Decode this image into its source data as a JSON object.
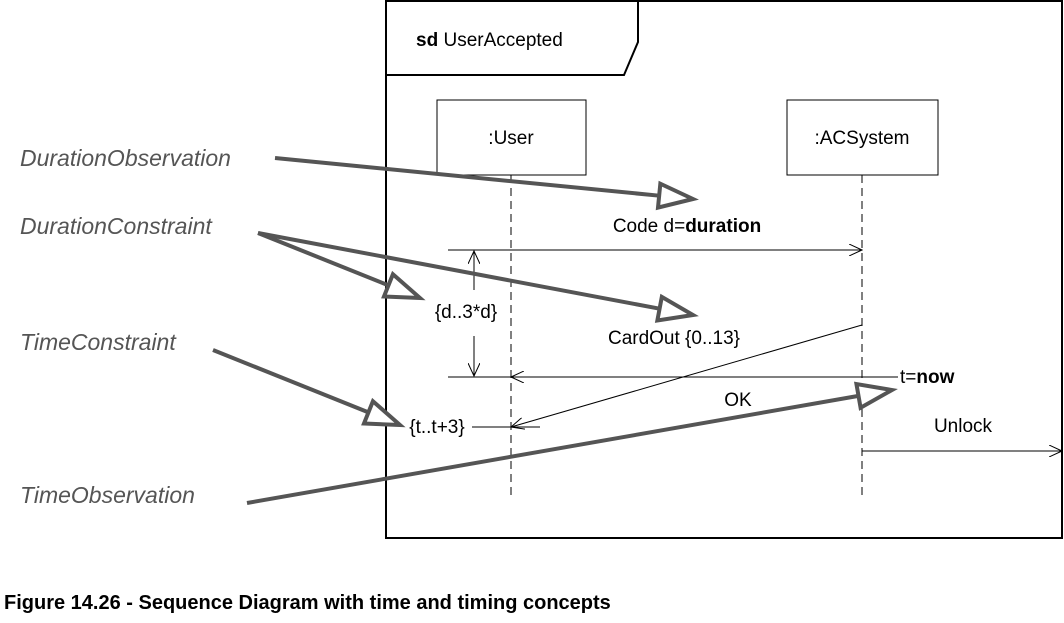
{
  "frame": {
    "keyword": "sd",
    "name": "UserAccepted"
  },
  "lifelines": [
    {
      "name": ":User"
    },
    {
      "name": ":ACSystem"
    }
  ],
  "messages": {
    "code_prefix": "Code d=",
    "code_bold": "duration",
    "cardout": "CardOut {0..13}",
    "ok": "OK",
    "unlock": "Unlock",
    "tnow_prefix": "t=",
    "tnow_bold": "now"
  },
  "constraints": {
    "duration": "{d..3*d}",
    "time": "{t..t+3}"
  },
  "annotations": {
    "duration_observation": "DurationObservation",
    "duration_constraint": "DurationConstraint",
    "time_constraint": "TimeConstraint",
    "time_observation": "TimeObservation"
  },
  "caption": "Figure 14.26 - Sequence Diagram with time and timing concepts",
  "colors": {
    "annotation_arrow": "#555555",
    "line": "#000000"
  }
}
